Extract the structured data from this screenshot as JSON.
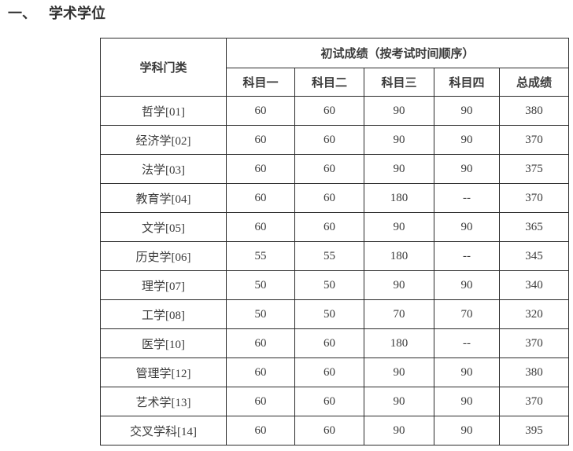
{
  "section": {
    "number": "一、",
    "title": "学术学位"
  },
  "table": {
    "header": {
      "col_category": "学科门类",
      "group_title": "初试成绩（按考试时间顺序）",
      "subjects": [
        "科目一",
        "科目二",
        "科目三",
        "科目四",
        "总成绩"
      ]
    },
    "rows": [
      {
        "category": "哲学[01]",
        "values": [
          "60",
          "60",
          "90",
          "90",
          "380"
        ]
      },
      {
        "category": "经济学[02]",
        "values": [
          "60",
          "60",
          "90",
          "90",
          "370"
        ]
      },
      {
        "category": "法学[03]",
        "values": [
          "60",
          "60",
          "90",
          "90",
          "375"
        ]
      },
      {
        "category": "教育学[04]",
        "values": [
          "60",
          "60",
          "180",
          "--",
          "370"
        ]
      },
      {
        "category": "文学[05]",
        "values": [
          "60",
          "60",
          "90",
          "90",
          "365"
        ]
      },
      {
        "category": "历史学[06]",
        "values": [
          "55",
          "55",
          "180",
          "--",
          "345"
        ]
      },
      {
        "category": "理学[07]",
        "values": [
          "50",
          "50",
          "90",
          "90",
          "340"
        ]
      },
      {
        "category": "工学[08]",
        "values": [
          "50",
          "50",
          "70",
          "70",
          "320"
        ]
      },
      {
        "category": "医学[10]",
        "values": [
          "60",
          "60",
          "180",
          "--",
          "370"
        ]
      },
      {
        "category": "管理学[12]",
        "values": [
          "60",
          "60",
          "90",
          "90",
          "380"
        ]
      },
      {
        "category": "艺术学[13]",
        "values": [
          "60",
          "60",
          "90",
          "90",
          "370"
        ]
      },
      {
        "category": "交叉学科[14]",
        "values": [
          "60",
          "60",
          "90",
          "90",
          "395"
        ]
      }
    ],
    "colors": {
      "text": "#3b3b3b",
      "border": "#2b2b2b",
      "background": "#ffffff"
    }
  }
}
